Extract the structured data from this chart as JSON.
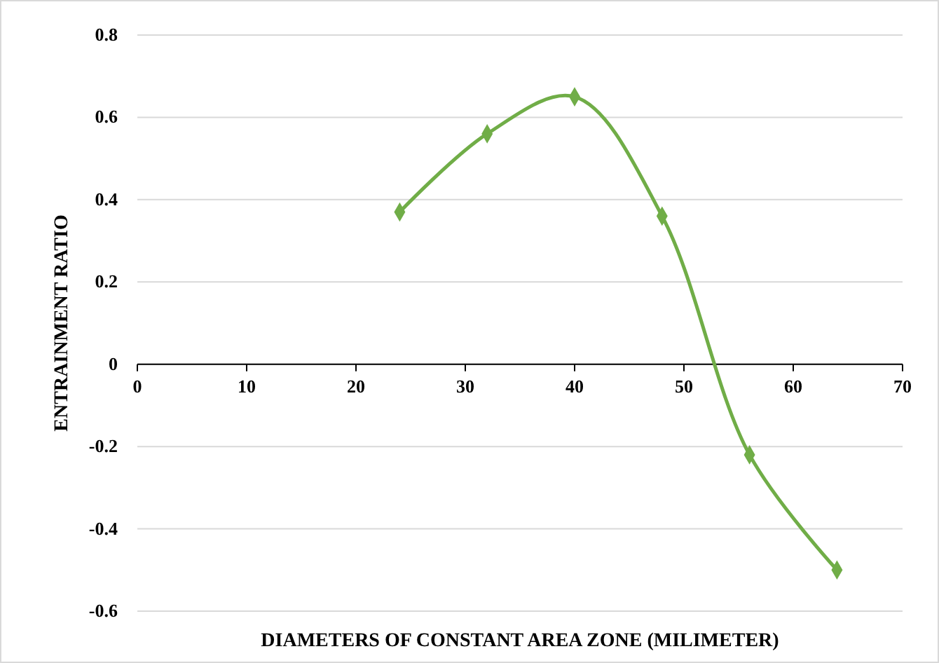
{
  "chart_data": {
    "type": "line",
    "xlabel": "DIAMETERS OF CONSTANT AREA ZONE (MILIMETER)",
    "ylabel": "ENTRAINMENT RATIO",
    "x": [
      24,
      32,
      40,
      48,
      56,
      64
    ],
    "series": [
      {
        "color": "#70ad47",
        "values": [
          0.37,
          0.56,
          0.65,
          0.36,
          -0.22,
          -0.5
        ]
      }
    ],
    "xlim": [
      0,
      70
    ],
    "xticks": [
      0,
      10,
      20,
      30,
      40,
      50,
      60,
      70
    ],
    "ylim": [
      -0.6,
      0.8
    ],
    "yticks": [
      -0.6,
      -0.4,
      -0.2,
      0,
      0.2,
      0.4,
      0.6,
      0.8
    ],
    "grid": "y",
    "marker": "diamond",
    "line_style": "solid"
  }
}
